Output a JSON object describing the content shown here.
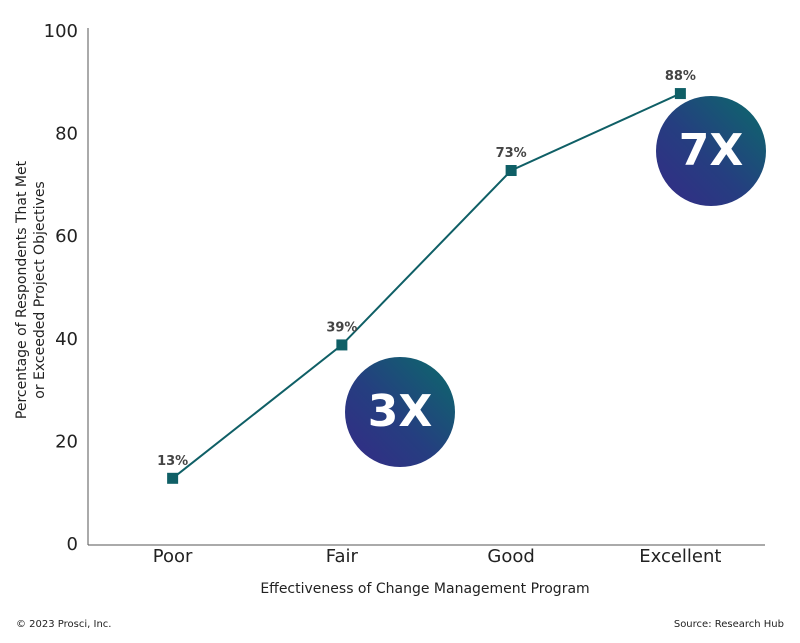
{
  "chart_data": {
    "type": "line",
    "categories": [
      "Poor",
      "Fair",
      "Good",
      "Excellent"
    ],
    "series": [
      {
        "color": "#0f5f66",
        "values": [
          13,
          39,
          73,
          88
        ],
        "value_labels": [
          "13%",
          "39%",
          "73%",
          "88%"
        ]
      }
    ],
    "ylim": [
      0,
      100
    ],
    "yticks": [
      0,
      20,
      40,
      60,
      80,
      100
    ],
    "grid": false,
    "xlabel": "Effectiveness of Change Management Program",
    "ylabel": [
      "Percentage of Respondents That Met",
      "or Exceeded Project Objectives"
    ],
    "annotations": [
      "3X",
      "7X"
    ]
  },
  "footer": {
    "copyright": "© 2023 Prosci, Inc.",
    "source": "Source: Research Hub"
  }
}
